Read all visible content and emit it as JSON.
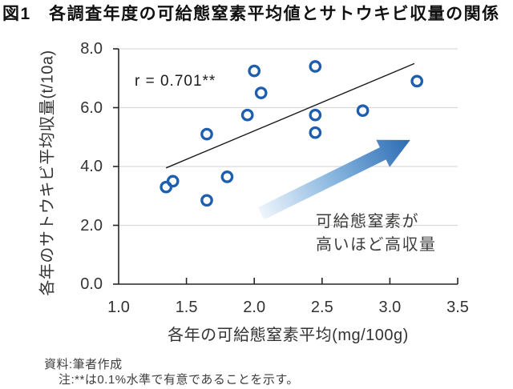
{
  "title": "図1　各調査年度の可給態窒素平均値とサトウキビ収量の関係",
  "chart_data": {
    "type": "scatter",
    "title": "図1　各調査年度の可給態窒素平均値とサトウキビ収量の関係",
    "x_label": "各年の可給態窒素平均(mg/100g)",
    "y_label": "各年のサトウキビ平均収量(t/10a)",
    "xlim": [
      1.0,
      3.5
    ],
    "ylim": [
      0.0,
      8.0
    ],
    "x_tick_values": [
      1.0,
      1.5,
      2.0,
      2.5,
      3.0,
      3.5
    ],
    "x_tick_labels": [
      "1.0",
      "1.5",
      "2.0",
      "2.5",
      "3.0",
      "3.5"
    ],
    "y_tick_values": [
      8,
      6,
      4,
      2,
      0
    ],
    "y_tick_labels": [
      "8.0",
      "6.0",
      "4.0",
      "2.0",
      "0.0"
    ],
    "grid_values": [
      2,
      4,
      6,
      8
    ],
    "grid": "horizontal",
    "points": [
      [
        1.35,
        3.3
      ],
      [
        1.4,
        3.5
      ],
      [
        1.65,
        2.85
      ],
      [
        1.65,
        5.1
      ],
      [
        1.8,
        3.65
      ],
      [
        1.95,
        5.75
      ],
      [
        2.0,
        7.25
      ],
      [
        2.05,
        6.5
      ],
      [
        2.45,
        5.15
      ],
      [
        2.45,
        5.75
      ],
      [
        2.45,
        7.4
      ],
      [
        2.8,
        5.9
      ],
      [
        3.2,
        6.9
      ]
    ],
    "trendline": {
      "x1": 1.35,
      "y1": 3.95,
      "x2": 3.18,
      "y2": 7.5
    },
    "correlation_label": "r = 0.701**",
    "annotation": {
      "line1": "可給態窒素が",
      "line2": "高いほど高収量"
    },
    "arrow": {
      "x1": 2.05,
      "y1": 2.4,
      "x2": 3.15,
      "y2": 4.9
    },
    "colors": {
      "marker": "#1d5fae",
      "trendline": "#1a1a1a",
      "gridline": "#d9d9d9",
      "axis": "#262626",
      "arrow_tail": "#eef5fc",
      "arrow_mid": "#85b4de",
      "arrow_head": "#2c6bb3"
    }
  },
  "footer": {
    "source": "資料:筆者作成",
    "note": "注:**は0.1%水準で有意であることを示す。"
  }
}
